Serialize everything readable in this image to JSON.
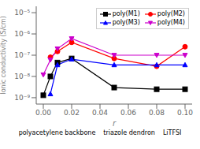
{
  "chart_data": {
    "type": "line",
    "x_label": "r",
    "y_label": "Ionic conductivity (S/cm)",
    "log": "y",
    "xlim": [
      -0.005,
      0.105
    ],
    "xticks": [
      {
        "value": 0,
        "label": "0.00"
      },
      0.02,
      0.04,
      0.06,
      0.08,
      {
        "value": 0.1,
        "label": "0.10"
      }
    ],
    "ylim": [
      5.011872336272722e-10,
      1.9952623149688786e-05
    ],
    "yticks": [
      {
        "value": 1e-09,
        "label": "10⁻⁹"
      },
      {
        "value": 1e-08,
        "label": "10⁻⁸"
      },
      {
        "value": 1e-07,
        "label": "10⁻⁷"
      },
      {
        "value": 1e-06,
        "label": "10⁻⁶"
      },
      {
        "value": 1e-05,
        "label": "10⁻⁵"
      }
    ],
    "legend": "upper right",
    "grid": false,
    "series": [
      {
        "name": "poly(M1)",
        "color": "#000000",
        "marker": "square",
        "x": [
          0.0,
          0.005,
          0.01,
          0.02,
          0.05,
          0.08,
          0.1
        ],
        "values": [
          1.3e-09,
          1e-08,
          4.5e-08,
          7e-08,
          3e-09,
          2.5e-09,
          2.5e-09
        ]
      },
      {
        "name": "poly(M2)",
        "color": "#ff0000",
        "marker": "circle",
        "x": [
          0.005,
          0.01,
          0.02,
          0.05,
          0.08,
          0.1
        ],
        "values": [
          8e-08,
          1.5e-07,
          4e-07,
          7e-08,
          3e-08,
          2.5e-07
        ]
      },
      {
        "name": "poly(M3)",
        "color": "#0000ff",
        "marker": "triangle-up",
        "x": [
          0.005,
          0.01,
          0.02,
          0.05,
          0.08,
          0.1
        ],
        "values": [
          1.5e-09,
          3.5e-08,
          6.5e-08,
          3.5e-08,
          3.5e-08,
          3.5e-08
        ]
      },
      {
        "name": "poly(M4)",
        "color": "#cc00cc",
        "marker": "triangle-down",
        "x": [
          0.0,
          0.005,
          0.01,
          0.02,
          0.05,
          0.08,
          0.1
        ],
        "values": [
          1.2e-08,
          6e-08,
          2e-07,
          6e-07,
          1e-07,
          1e-07,
          1e-07
        ]
      }
    ],
    "annotations": [
      "polyacetylene backbone",
      "triazole dendron",
      "LiTFSI"
    ]
  }
}
